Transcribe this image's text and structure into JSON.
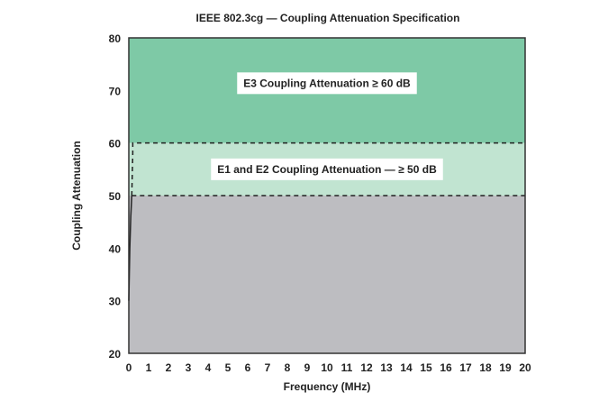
{
  "chart_data": {
    "type": "area",
    "title": "IEEE 802.3cg — Coupling Attenuation Specification",
    "xlabel": "Frequency (MHz)",
    "ylabel": "Coupling Attenuation",
    "xlim": [
      0,
      20
    ],
    "ylim": [
      20,
      80
    ],
    "x_ticks": [
      "0",
      "1",
      "2",
      "3",
      "4",
      "5",
      "6",
      "7",
      "8",
      "9",
      "10",
      "11",
      "12",
      "13",
      "14",
      "15",
      "16",
      "17",
      "18",
      "19",
      "20"
    ],
    "y_ticks": [
      "20",
      "30",
      "40",
      "50",
      "60",
      "70",
      "80"
    ],
    "grid": false,
    "regions": [
      {
        "name": "E3 Coupling Attenuation ≥ 60 dB",
        "y_range": [
          60,
          80
        ],
        "color": "#7ec9a6"
      },
      {
        "name": "E1 and E2 Coupling Attenuation — ≥ 50 dB",
        "y_range": [
          50,
          60
        ],
        "color": "#c1e4d1"
      },
      {
        "y_range": [
          20,
          50
        ],
        "color": "#bdbdc1"
      }
    ],
    "series": [
      {
        "style": "solid",
        "x": [
          0,
          0.05,
          0.1,
          0.15
        ],
        "y": [
          30,
          40,
          46,
          50
        ]
      },
      {
        "style": "dashed",
        "x": [
          0.15,
          0.2,
          0.2,
          20
        ],
        "y": [
          50,
          58,
          60,
          60
        ]
      },
      {
        "style": "dashed",
        "x": [
          0.15,
          20
        ],
        "y": [
          50,
          50
        ]
      }
    ]
  }
}
